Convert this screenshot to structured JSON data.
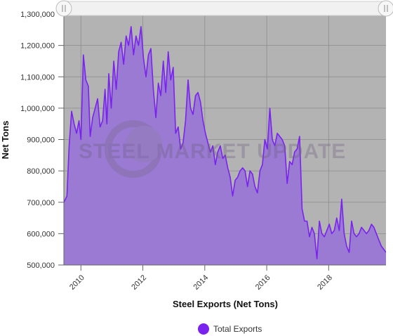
{
  "chart_data": {
    "type": "area",
    "title": "",
    "xlabel": "Steel Exports (Net Tons)",
    "ylabel": "Net Tons",
    "ylim": [
      500000,
      1300000
    ],
    "y_ticks": [
      500000,
      600000,
      700000,
      800000,
      900000,
      1000000,
      1100000,
      1200000,
      1300000
    ],
    "y_tick_labels": [
      "500,000",
      "600,000",
      "700,000",
      "800,000",
      "900,000",
      "1,000,000",
      "1,100,000",
      "1,200,000",
      "1,300,000"
    ],
    "xlim": [
      2009.45,
      2019.85
    ],
    "x_ticks": [
      2010,
      2012,
      2014,
      2016,
      2018
    ],
    "x_tick_labels": [
      "2010",
      "2012",
      "2014",
      "2016",
      "2018"
    ],
    "grid": true,
    "legend_position": "bottom-center",
    "background_color": "#b3b3b3",
    "fill_color": "#9a7ad2",
    "line_color": "#7a22ee",
    "watermark": "STEEL MARKET UPDATE",
    "series": [
      {
        "name": "Total Exports",
        "x": [
          2009.45,
          2009.55,
          2009.62,
          2009.7,
          2009.78,
          2009.86,
          2009.94,
          2010.0,
          2010.08,
          2010.16,
          2010.24,
          2010.3,
          2010.38,
          2010.46,
          2010.54,
          2010.62,
          2010.7,
          2010.78,
          2010.84,
          2010.9,
          2010.98,
          2011.06,
          2011.14,
          2011.22,
          2011.3,
          2011.38,
          2011.46,
          2011.54,
          2011.62,
          2011.7,
          2011.78,
          2011.86,
          2011.94,
          2012.02,
          2012.1,
          2012.18,
          2012.26,
          2012.34,
          2012.42,
          2012.5,
          2012.58,
          2012.66,
          2012.74,
          2012.82,
          2012.9,
          2012.98,
          2013.06,
          2013.14,
          2013.22,
          2013.3,
          2013.38,
          2013.46,
          2013.54,
          2013.62,
          2013.7,
          2013.78,
          2013.86,
          2013.94,
          2014.02,
          2014.1,
          2014.18,
          2014.26,
          2014.34,
          2014.42,
          2014.5,
          2014.58,
          2014.66,
          2014.74,
          2014.82,
          2014.9,
          2014.98,
          2015.06,
          2015.14,
          2015.22,
          2015.3,
          2015.38,
          2015.46,
          2015.54,
          2015.62,
          2015.7,
          2015.78,
          2015.86,
          2015.94,
          2016.02,
          2016.1,
          2016.18,
          2016.26,
          2016.34,
          2016.42,
          2016.5,
          2016.58,
          2016.66,
          2016.74,
          2016.82,
          2016.9,
          2016.98,
          2017.06,
          2017.14,
          2017.22,
          2017.3,
          2017.38,
          2017.46,
          2017.54,
          2017.62,
          2017.7,
          2017.78,
          2017.86,
          2017.94,
          2018.02,
          2018.1,
          2018.18,
          2018.26,
          2018.34,
          2018.42,
          2018.5,
          2018.58,
          2018.66,
          2018.74,
          2018.82,
          2018.9,
          2018.98,
          2019.06,
          2019.14,
          2019.22,
          2019.3,
          2019.38,
          2019.46,
          2019.54,
          2019.62,
          2019.7,
          2019.78,
          2019.85
        ],
        "values": [
          700000,
          720000,
          880000,
          990000,
          950000,
          920000,
          960000,
          900000,
          1170000,
          1090000,
          1070000,
          910000,
          970000,
          1000000,
          1030000,
          940000,
          960000,
          1060000,
          950000,
          1110000,
          1000000,
          1150000,
          1060000,
          1180000,
          1210000,
          1140000,
          1230000,
          1200000,
          1260000,
          1170000,
          1230000,
          1200000,
          1260000,
          1160000,
          1100000,
          1170000,
          1190000,
          1060000,
          970000,
          1080000,
          1040000,
          1150000,
          1050000,
          1180000,
          1090000,
          1130000,
          920000,
          940000,
          870000,
          890000,
          960000,
          1090000,
          1000000,
          980000,
          1040000,
          1050000,
          1020000,
          960000,
          920000,
          890000,
          860000,
          880000,
          820000,
          860000,
          880000,
          840000,
          850000,
          810000,
          780000,
          720000,
          770000,
          780000,
          800000,
          810000,
          800000,
          750000,
          800000,
          790000,
          750000,
          730000,
          800000,
          820000,
          900000,
          870000,
          1000000,
          900000,
          880000,
          920000,
          910000,
          900000,
          880000,
          760000,
          830000,
          820000,
          860000,
          870000,
          910000,
          680000,
          640000,
          640000,
          590000,
          620000,
          600000,
          520000,
          640000,
          600000,
          590000,
          610000,
          630000,
          600000,
          610000,
          650000,
          610000,
          710000,
          600000,
          560000,
          540000,
          640000,
          600000,
          590000,
          600000,
          620000,
          610000,
          600000,
          610000,
          630000,
          620000,
          600000,
          580000,
          560000,
          550000,
          540000
        ]
      }
    ]
  }
}
